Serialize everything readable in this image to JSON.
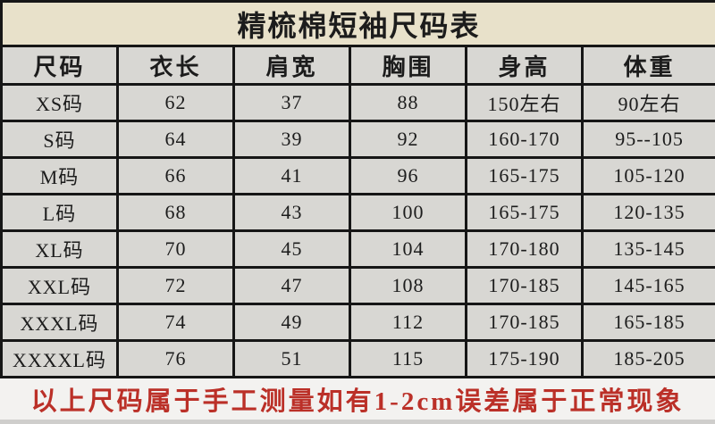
{
  "title": "精梳棉短袖尺码表",
  "table": {
    "headers": [
      "尺码",
      "衣长",
      "肩宽",
      "胸围",
      "身高",
      "体重"
    ],
    "rows": [
      [
        "XS码",
        "62",
        "37",
        "88",
        "150左右",
        "90左右"
      ],
      [
        "S码",
        "64",
        "39",
        "92",
        "160-170",
        "95--105"
      ],
      [
        "M码",
        "66",
        "41",
        "96",
        "165-175",
        "105-120"
      ],
      [
        "L码",
        "68",
        "43",
        "100",
        "165-175",
        "120-135"
      ],
      [
        "XL码",
        "70",
        "45",
        "104",
        "170-180",
        "135-145"
      ],
      [
        "XXL码",
        "72",
        "47",
        "108",
        "170-185",
        "145-165"
      ],
      [
        "XXXL码",
        "74",
        "49",
        "112",
        "170-185",
        "165-185"
      ],
      [
        "XXXXL码",
        "76",
        "51",
        "115",
        "175-190",
        "185-205"
      ]
    ]
  },
  "footer_note": "以上尺码属于手工测量如有1-2cm误差属于正常现象",
  "colors": {
    "title_bg": "#e8e1ca",
    "cell_bg": "#d8d7d3",
    "border": "#161616",
    "note_bg": "#f3f2f0",
    "note_text": "#bb3028"
  }
}
